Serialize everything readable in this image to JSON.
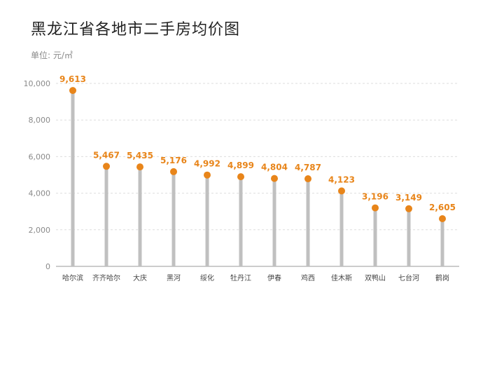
{
  "chart_data": {
    "type": "lollipop",
    "title": "黑龙江省各地市二手房均价图",
    "unit_label": "单位: 元/㎡",
    "categories": [
      "哈尔滨",
      "齐齐哈尔",
      "大庆",
      "黑河",
      "绥化",
      "牡丹江",
      "伊春",
      "鸡西",
      "佳木斯",
      "双鸭山",
      "七台河",
      "鹤岗"
    ],
    "values": [
      9613,
      5467,
      5435,
      5176,
      4992,
      4899,
      4804,
      4787,
      4123,
      3196,
      3149,
      2605
    ],
    "value_labels": [
      "9,613",
      "5,467",
      "5,435",
      "5,176",
      "4,992",
      "4,899",
      "4,804",
      "4,787",
      "4,123",
      "3,196",
      "3,149",
      "2,605"
    ],
    "yticks": [
      0,
      2000,
      4000,
      6000,
      8000,
      10000
    ],
    "ytick_labels": [
      "0",
      "2,000",
      "4,000",
      "6,000",
      "8,000",
      "10,000"
    ],
    "ylim": [
      0,
      10000
    ],
    "grid": true,
    "colors": {
      "stem": "#c0c0c0",
      "dot": "#e8851a",
      "label": "#e8851a",
      "grid": "#dddddd",
      "axis": "#bbbbbb"
    }
  }
}
